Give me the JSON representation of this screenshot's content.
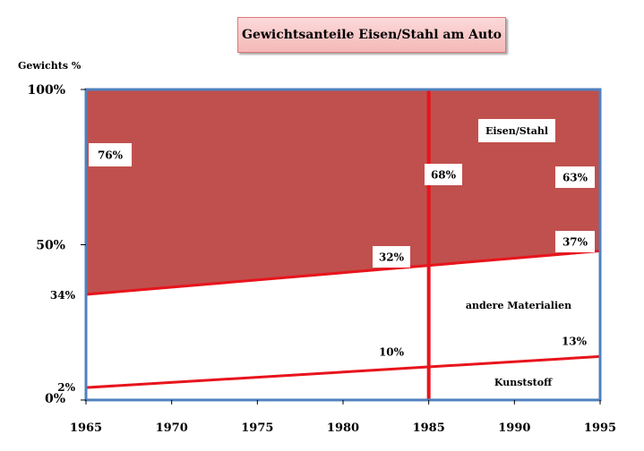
{
  "chart_data": {
    "type": "area",
    "title": "Gewichtsanteile Eisen/Stahl am Auto",
    "ylabel": "Gewichts %",
    "xlabel": "",
    "xlim": [
      1965,
      1995
    ],
    "ylim": [
      0,
      100
    ],
    "x_ticks": [
      "1965",
      "1970",
      "1975",
      "1980",
      "1985",
      "1990",
      "1995"
    ],
    "y_ticks": [
      {
        "label": "100%",
        "value": 100
      },
      {
        "label": "50%",
        "value": 50
      },
      {
        "label": "34%",
        "value": 34
      },
      {
        "label": "2%",
        "value": 2
      },
      {
        "label": "0%",
        "value": 0
      }
    ],
    "boundaries": [
      {
        "name": "Eisen/Stahl",
        "x": [
          1965,
          1995
        ],
        "y": [
          34,
          48
        ]
      },
      {
        "name": "Kunststoff",
        "x": [
          1965,
          1995
        ],
        "y": [
          4,
          14
        ]
      }
    ],
    "vertical_marker": 1985,
    "region_labels": [
      "Eisen/Stahl",
      "andere Materialien",
      "Kunststoff"
    ],
    "annotations": [
      "76%",
      "68%",
      "63%",
      "32%",
      "37%",
      "10%",
      "13%"
    ],
    "colors": {
      "fill": "#c0504d",
      "line": "#e8141c",
      "frame": "#4f81bd"
    },
    "grid": false
  }
}
